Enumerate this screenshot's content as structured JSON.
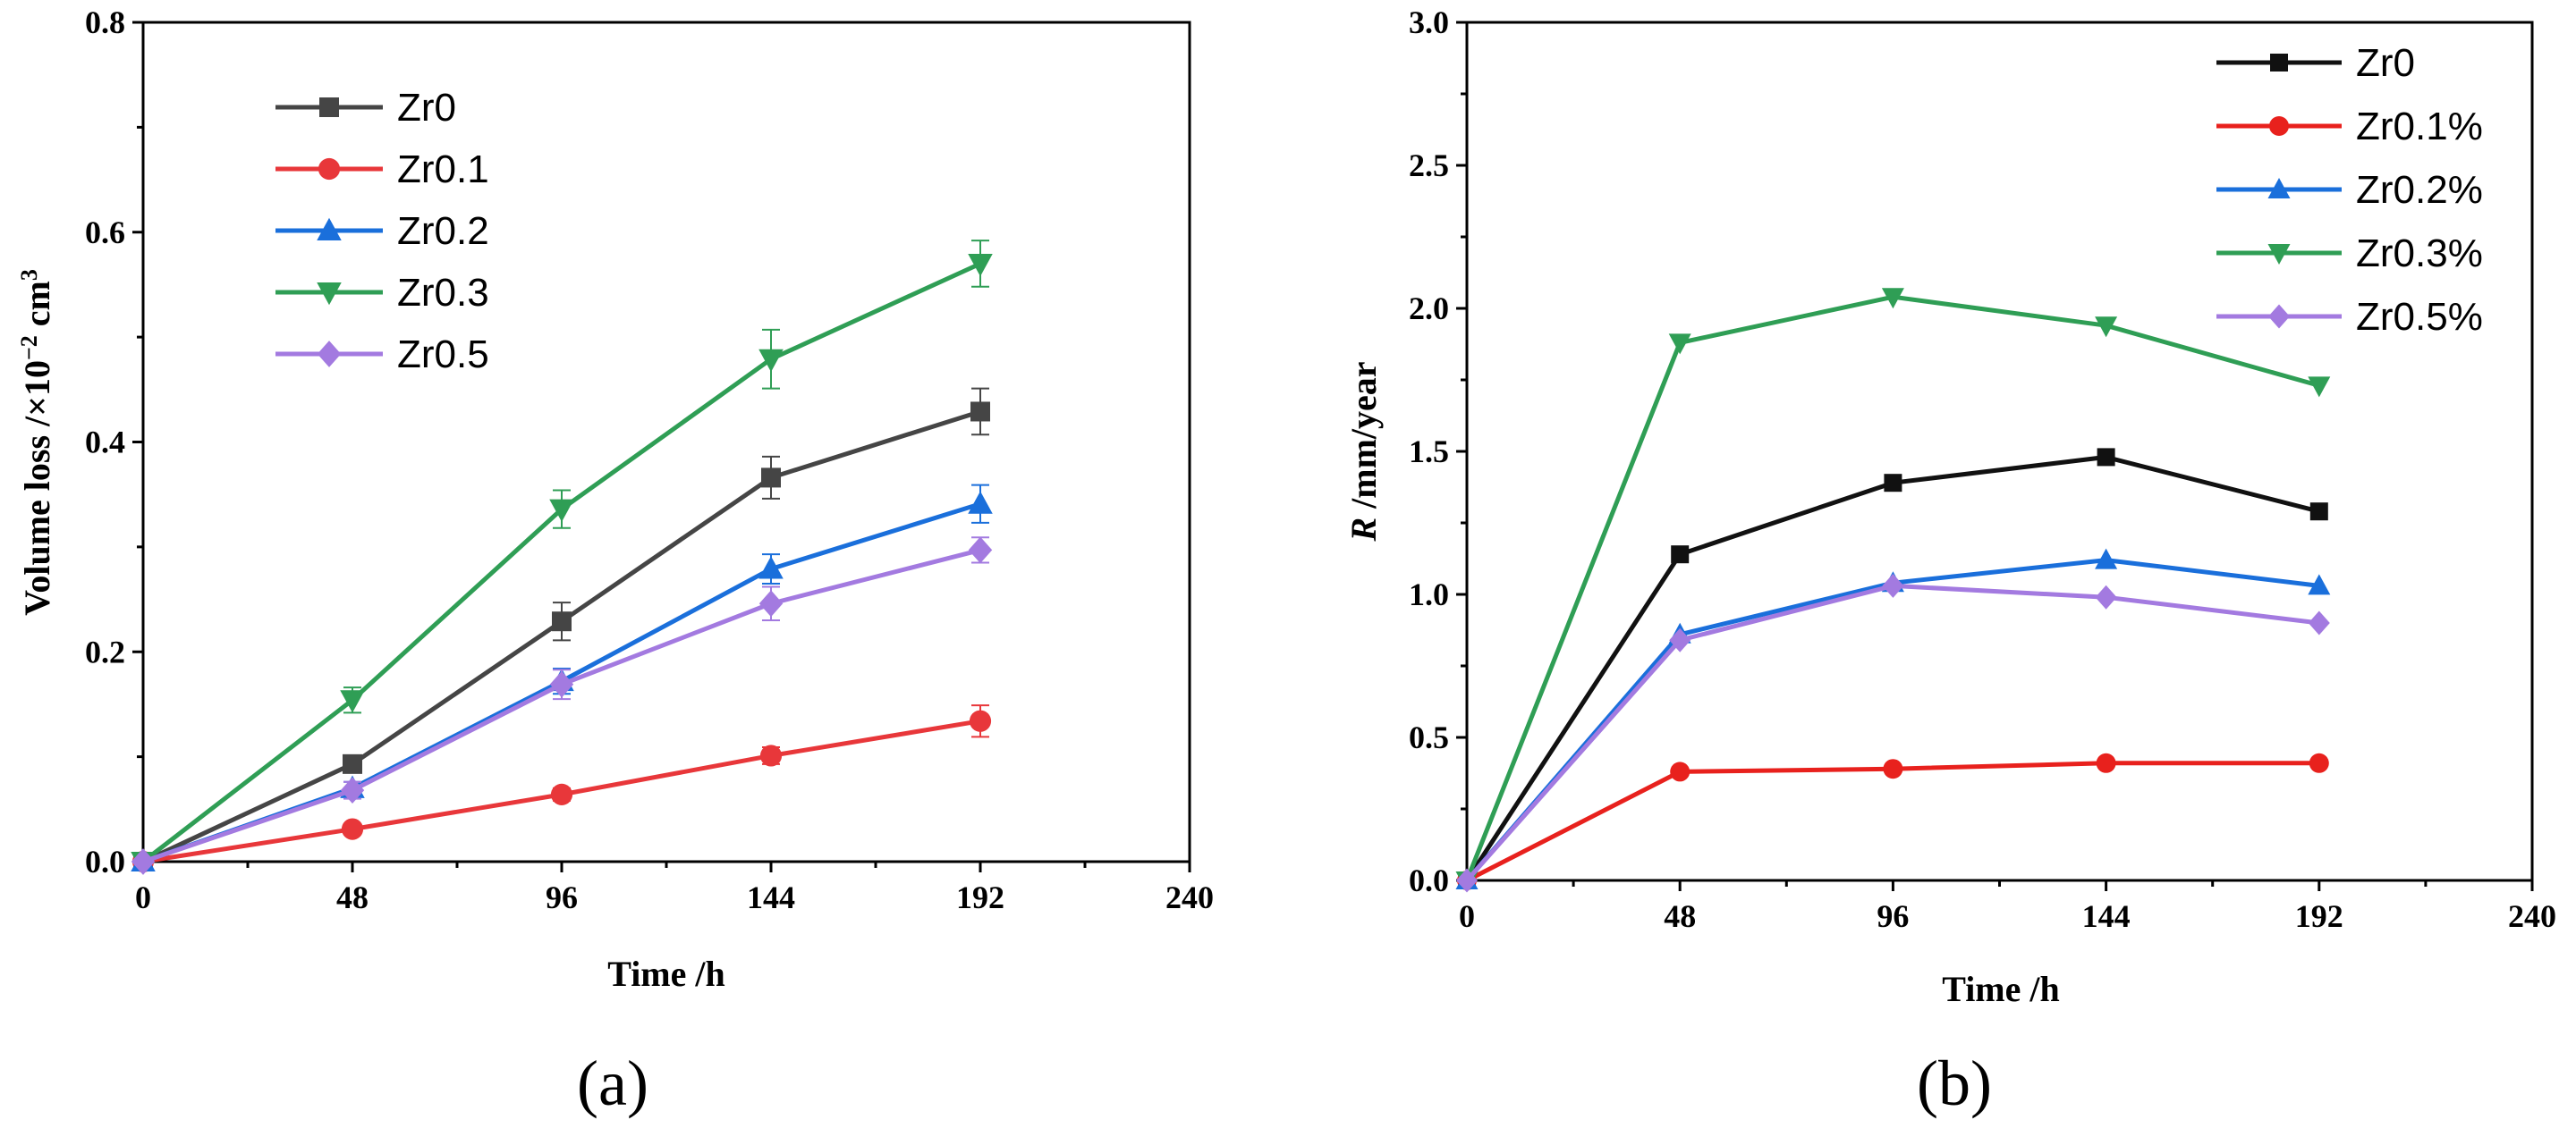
{
  "chart_data": [
    {
      "panel_label": "(a)",
      "type": "line",
      "xlabel": "Time /h",
      "ylabel_main": "Volume loss /×10",
      "ylabel_exp": "−2",
      "ylabel_unit": " cm",
      "ylabel_unit_exp": "3",
      "xlim": [
        0,
        240
      ],
      "ylim": [
        0,
        0.8
      ],
      "xticks": [
        0,
        48,
        96,
        144,
        192,
        240
      ],
      "yticks": [
        0.0,
        0.2,
        0.4,
        0.6,
        0.8
      ],
      "ytick_labels": [
        "0.0",
        "0.2",
        "0.4",
        "0.6",
        "0.8"
      ],
      "xtick_labels": [
        "0",
        "48",
        "96",
        "144",
        "192",
        "240"
      ],
      "legend_position": "top-left",
      "x": [
        0,
        48,
        96,
        144,
        192
      ],
      "series": [
        {
          "name": "Zr0",
          "color": "#454545",
          "marker": "square",
          "values": [
            0,
            0.093,
            0.229,
            0.366,
            0.429
          ],
          "errors": [
            0,
            0.008,
            0.018,
            0.02,
            0.022
          ]
        },
        {
          "name": "Zr0.1",
          "color": "#e8373a",
          "marker": "circle",
          "values": [
            0,
            0.031,
            0.064,
            0.101,
            0.134
          ],
          "errors": [
            0,
            0.004,
            0.006,
            0.008,
            0.015
          ]
        },
        {
          "name": "Zr0.2",
          "color": "#1a6fdb",
          "marker": "triangle-up",
          "values": [
            0,
            0.07,
            0.172,
            0.279,
            0.341
          ],
          "errors": [
            0,
            0.006,
            0.012,
            0.014,
            0.018
          ]
        },
        {
          "name": "Zr0.3",
          "color": "#2f9e55",
          "marker": "triangle-down",
          "values": [
            0,
            0.154,
            0.336,
            0.479,
            0.57
          ],
          "errors": [
            0,
            0.012,
            0.018,
            0.028,
            0.022
          ]
        },
        {
          "name": "Zr0.5",
          "color": "#a37ae0",
          "marker": "diamond",
          "values": [
            0,
            0.068,
            0.169,
            0.246,
            0.297
          ],
          "errors": [
            0,
            0.008,
            0.014,
            0.016,
            0.012
          ]
        }
      ]
    },
    {
      "panel_label": "(b)",
      "type": "line",
      "xlabel": "Time /h",
      "ylabel_italic": "R",
      "ylabel_main": " /mm/year",
      "xlim": [
        0,
        240
      ],
      "ylim": [
        0,
        3.0
      ],
      "xticks": [
        0,
        48,
        96,
        144,
        192,
        240
      ],
      "yticks": [
        0.0,
        0.5,
        1.0,
        1.5,
        2.0,
        2.5,
        3.0
      ],
      "ytick_labels": [
        "0.0",
        "0.5",
        "1.0",
        "1.5",
        "2.0",
        "2.5",
        "3.0"
      ],
      "xtick_labels": [
        "0",
        "48",
        "96",
        "144",
        "192",
        "240"
      ],
      "legend_position": "top-right",
      "x": [
        0,
        48,
        96,
        144,
        192
      ],
      "series": [
        {
          "name": "Zr0",
          "color": "#111111",
          "marker": "square",
          "values": [
            0,
            1.14,
            1.39,
            1.48,
            1.29
          ]
        },
        {
          "name": "Zr0.1%",
          "color": "#e8211d",
          "marker": "circle",
          "values": [
            0,
            0.38,
            0.39,
            0.41,
            0.41
          ]
        },
        {
          "name": "Zr0.2%",
          "color": "#1a6fdb",
          "marker": "triangle-up",
          "values": [
            0,
            0.86,
            1.04,
            1.12,
            1.03
          ]
        },
        {
          "name": "Zr0.3%",
          "color": "#2f9e55",
          "marker": "triangle-down",
          "values": [
            0,
            1.88,
            2.04,
            1.94,
            1.73
          ]
        },
        {
          "name": "Zr0.5%",
          "color": "#a37ae0",
          "marker": "diamond",
          "values": [
            0,
            0.84,
            1.03,
            0.99,
            0.9
          ]
        }
      ]
    }
  ]
}
